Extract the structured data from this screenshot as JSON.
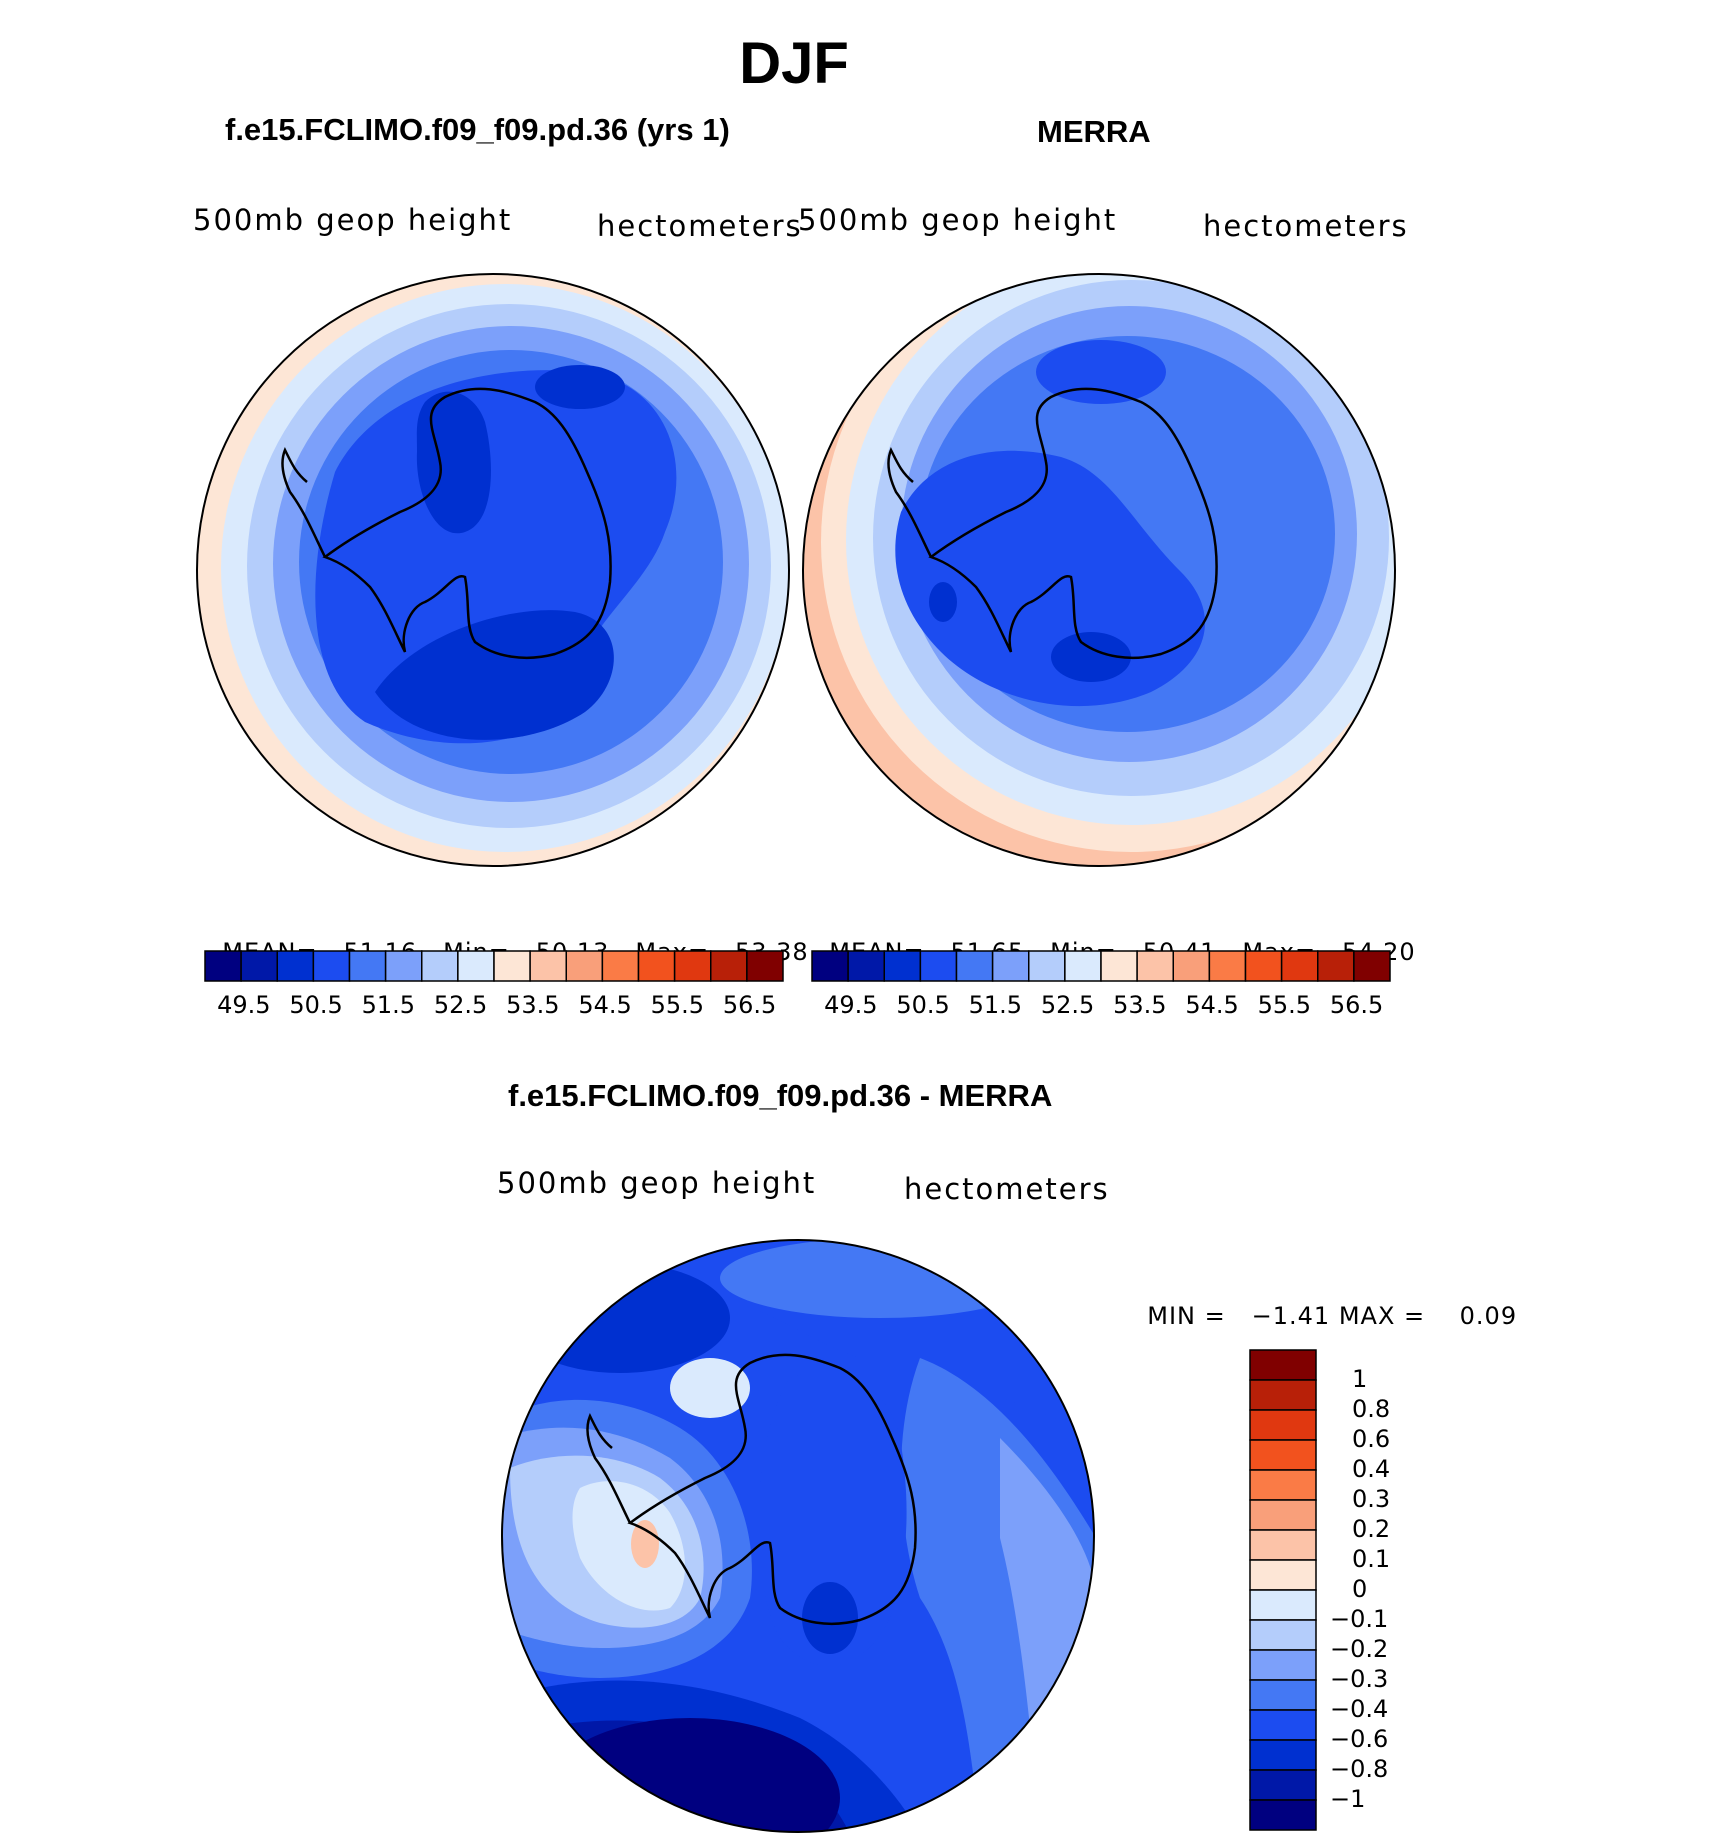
{
  "title": "DJF",
  "colors": {
    "palette": [
      "#000080",
      "#0018a8",
      "#0030d0",
      "#1c4cf0",
      "#4478f4",
      "#7ca0fa",
      "#b4cdfb",
      "#daeafd",
      "#fde6d6",
      "#fcc3a8",
      "#f99f7a",
      "#fa7b46",
      "#f2521e",
      "#e03810",
      "#b82008",
      "#800000"
    ],
    "land_outline": "#000000"
  },
  "chart_data": [
    {
      "type": "contour-map",
      "name": "model",
      "title": "f.e15.FCLIMO.f09_f09.pd.36 (yrs 1)",
      "variable": "500mb  geop  height",
      "units": "hectometers",
      "stats": {
        "mean_label": "MEAN=",
        "mean": "51.16",
        "min_label": "Min=",
        "min": "50.13",
        "max_label": "Max=",
        "max": "53.38"
      },
      "colorbar": {
        "levels": [
          49.5,
          50,
          50.5,
          51,
          51.5,
          52,
          52.5,
          53,
          53.5,
          54,
          54.5,
          55,
          55.5,
          56,
          56.5
        ],
        "tick_labels": [
          "49.5",
          "50.5",
          "51.5",
          "52.5",
          "53.5",
          "54.5",
          "55.5",
          "56.5"
        ]
      }
    },
    {
      "type": "contour-map",
      "name": "obs",
      "title": "MERRA",
      "variable": "500mb  geop  height",
      "units": "hectometers",
      "stats": {
        "mean_label": "MEAN=",
        "mean": "51.65",
        "min_label": "Min=",
        "min": "50.41",
        "max_label": "Max=",
        "max": "54.20"
      },
      "colorbar": {
        "levels": [
          49.5,
          50,
          50.5,
          51,
          51.5,
          52,
          52.5,
          53,
          53.5,
          54,
          54.5,
          55,
          55.5,
          56,
          56.5
        ],
        "tick_labels": [
          "49.5",
          "50.5",
          "51.5",
          "52.5",
          "53.5",
          "54.5",
          "55.5",
          "56.5"
        ]
      }
    },
    {
      "type": "contour-map",
      "name": "difference",
      "title": "f.e15.FCLIMO.f09_f09.pd.36 - MERRA",
      "variable": "500mb  geop  height",
      "units": "hectometers",
      "stats": {
        "min_label": "MIN =",
        "min": "−1.41",
        "max_label": "MAX =",
        "max": "0.09"
      },
      "colorbar": {
        "levels": [
          -1,
          -0.8,
          -0.6,
          -0.4,
          -0.3,
          -0.2,
          -0.1,
          0,
          0.1,
          0.2,
          0.3,
          0.4,
          0.6,
          0.8,
          1
        ],
        "tick_labels": [
          "1",
          "0.8",
          "0.6",
          "0.4",
          "0.3",
          "0.2",
          "0.1",
          "0",
          "−0.1",
          "−0.2",
          "−0.3",
          "−0.4",
          "−0.6",
          "−0.8",
          "−1"
        ]
      }
    }
  ]
}
